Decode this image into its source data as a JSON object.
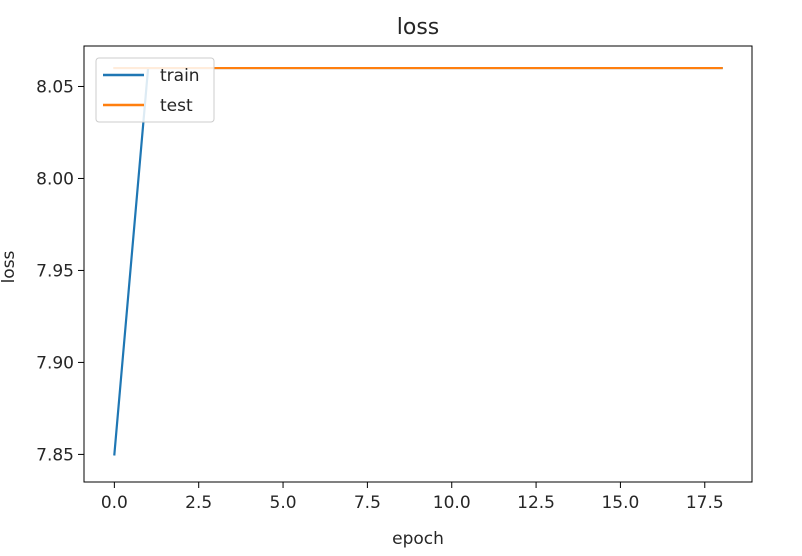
{
  "chart_data": {
    "type": "line",
    "title": "loss",
    "xlabel": "epoch",
    "ylabel": "loss",
    "xlim": [
      -0.9,
      18.9
    ],
    "ylim": [
      7.835,
      8.072
    ],
    "xticks": [
      0.0,
      2.5,
      5.0,
      7.5,
      10.0,
      12.5,
      15.0,
      17.5
    ],
    "xtick_labels": [
      "0.0",
      "2.5",
      "5.0",
      "7.5",
      "10.0",
      "12.5",
      "15.0",
      "17.5"
    ],
    "yticks": [
      7.85,
      7.9,
      7.95,
      8.0,
      8.05
    ],
    "ytick_labels": [
      "7.85",
      "7.90",
      "7.95",
      "8.00",
      "8.05"
    ],
    "grid": false,
    "legend_position": "upper-left",
    "series": [
      {
        "name": "train",
        "color": "#1f77b4",
        "x": [
          0,
          1,
          2,
          3,
          4,
          5,
          6,
          7,
          8,
          9,
          10,
          11,
          12,
          13,
          14,
          15,
          16,
          17,
          18
        ],
        "y": [
          7.85,
          8.06,
          8.06,
          8.06,
          8.06,
          8.06,
          8.06,
          8.06,
          8.06,
          8.06,
          8.06,
          8.06,
          8.06,
          8.06,
          8.06,
          8.06,
          8.06,
          8.06,
          8.06
        ]
      },
      {
        "name": "test",
        "color": "#ff7f0e",
        "x": [
          0,
          1,
          2,
          3,
          4,
          5,
          6,
          7,
          8,
          9,
          10,
          11,
          12,
          13,
          14,
          15,
          16,
          17,
          18
        ],
        "y": [
          8.06,
          8.06,
          8.06,
          8.06,
          8.06,
          8.06,
          8.06,
          8.06,
          8.06,
          8.06,
          8.06,
          8.06,
          8.06,
          8.06,
          8.06,
          8.06,
          8.06,
          8.06,
          8.06
        ]
      }
    ]
  }
}
